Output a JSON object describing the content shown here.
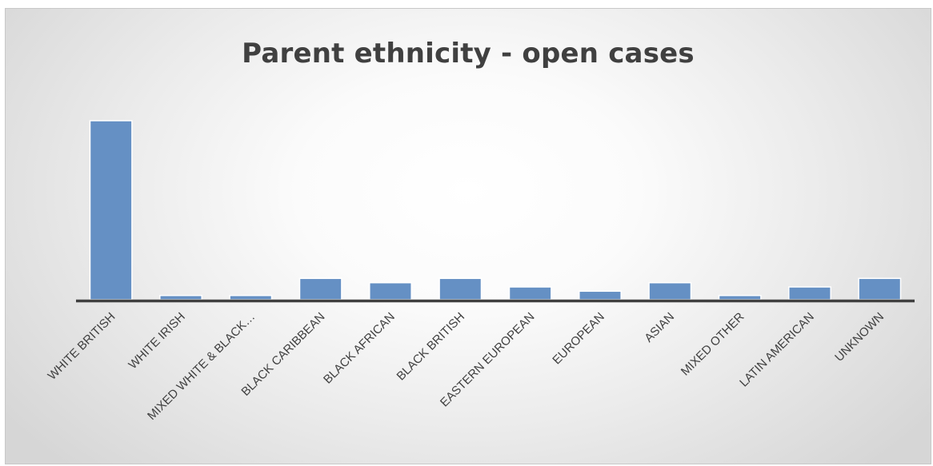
{
  "chart_data": {
    "type": "bar",
    "title": "Parent ethnicity - open cases",
    "xlabel": "",
    "ylabel": "",
    "categories": [
      "WHITE BRITISH",
      "WHITE IRISH",
      "MIXED WHITE & BLACK…",
      "BLACK CARIBBEAN",
      "BLACK AFRICAN",
      "BLACK BRITISH",
      "EASTERN EUROPEAN",
      "EUROPEAN",
      "ASIAN",
      "MIXED OTHER",
      "LATIN AMERICAN",
      "UNKNOWN"
    ],
    "values": [
      42,
      1,
      1,
      5,
      4,
      5,
      3,
      2,
      4,
      1,
      3,
      5
    ],
    "ylim": [
      0,
      42
    ],
    "grid": false,
    "legend": "none",
    "bar_color": "#6590c4",
    "bar_edge_color": "#ffffff",
    "axis_color": "#404040"
  }
}
